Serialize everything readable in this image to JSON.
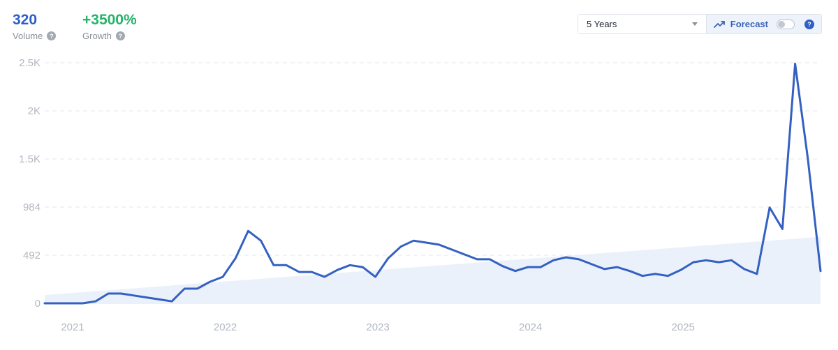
{
  "stats": {
    "volume_value": "320",
    "volume_label": "Volume",
    "growth_value": "+3500%",
    "growth_label": "Growth"
  },
  "controls": {
    "range_selected": "5 Years",
    "forecast_label": "Forecast",
    "forecast_enabled": false
  },
  "colors": {
    "volume": "#2e5fc7",
    "growth": "#27b36a",
    "line": "#3461c1",
    "trend_fill": "#e9f0fb"
  },
  "chart_data": {
    "type": "line",
    "title": "",
    "xlabel": "",
    "ylabel": "",
    "ylim": [
      0,
      2460
    ],
    "y_ticks": [
      0,
      492,
      984,
      1476,
      1968,
      2460
    ],
    "y_tick_labels": [
      "0",
      "492",
      "984",
      "1.5K",
      "2K",
      "2.5K"
    ],
    "x_tick_labels": [
      "2021",
      "2022",
      "2023",
      "2024",
      "2025"
    ],
    "x_tick_months": [
      1,
      13,
      25,
      37,
      49
    ],
    "grid": true,
    "series": [
      {
        "values": [
          0,
          0,
          0,
          0,
          20,
          100,
          100,
          80,
          60,
          40,
          20,
          150,
          150,
          220,
          270,
          460,
          740,
          640,
          390,
          390,
          320,
          320,
          270,
          340,
          390,
          370,
          270,
          460,
          580,
          640,
          620,
          600,
          550,
          500,
          450,
          450,
          380,
          330,
          370,
          370,
          440,
          470,
          450,
          400,
          350,
          370,
          330,
          280,
          300,
          280,
          340,
          420,
          440,
          420,
          440,
          350,
          300,
          980,
          760,
          2450,
          1480,
          330
        ]
      }
    ],
    "trend_area": {
      "start_value": 85,
      "end_value": 680
    }
  }
}
